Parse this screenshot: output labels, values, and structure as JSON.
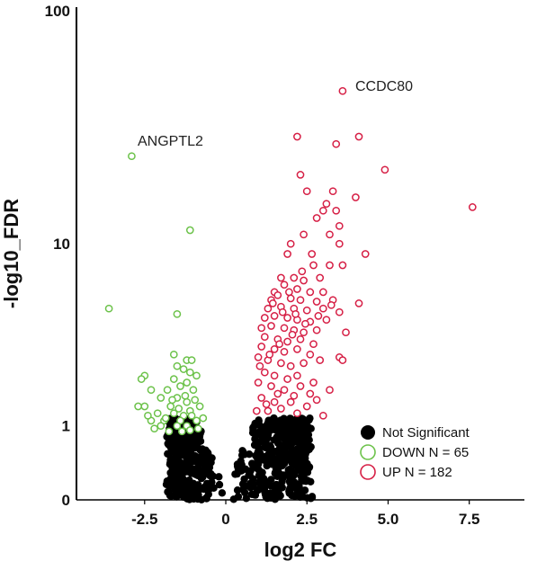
{
  "colors": {
    "not_significant": "#000000",
    "down": "#6cc24a",
    "up": "#d61f45",
    "axis": "#000000"
  },
  "chart_data": {
    "type": "scatter",
    "title": "",
    "xlabel": "log2 FC",
    "ylabel": "-log10_FDR",
    "xlim": [
      -4.6,
      9.2
    ],
    "y_scale": "log10(1 + y)",
    "ylim": [
      0,
      100
    ],
    "x_ticks": [
      {
        "value": -2.5,
        "label": "-2.5"
      },
      {
        "value": 0,
        "label": "0"
      },
      {
        "value": 2.5,
        "label": "2.5"
      },
      {
        "value": 5,
        "label": "5.0"
      },
      {
        "value": 7.5,
        "label": "7.5"
      }
    ],
    "y_ticks": [
      {
        "value": 0,
        "label": "0"
      },
      {
        "value": 1,
        "label": "1"
      },
      {
        "value": 10,
        "label": "10"
      },
      {
        "value": 100,
        "label": "100"
      }
    ],
    "grid": false,
    "legend_position": "bottom-right",
    "legend": [
      {
        "label": "Not Significant",
        "style": "filled",
        "color_key": "not_significant"
      },
      {
        "label": "DOWN N = 65",
        "style": "open",
        "color_key": "down"
      },
      {
        "label": "UP N = 182",
        "style": "open",
        "color_key": "up"
      }
    ],
    "annotations": [
      {
        "text": "CCDC80",
        "x": 3.6,
        "y": 45
      },
      {
        "text": "ANGPTL2",
        "x": -2.9,
        "y": 24
      }
    ],
    "series": [
      {
        "name": "UP N = 182",
        "style": "open",
        "color_key": "up",
        "points": [
          [
            3.6,
            45
          ],
          [
            2.2,
            29
          ],
          [
            3.4,
            27
          ],
          [
            4.1,
            29
          ],
          [
            4.9,
            21
          ],
          [
            2.3,
            20
          ],
          [
            2.5,
            17
          ],
          [
            3.3,
            17
          ],
          [
            4,
            16
          ],
          [
            3,
            14
          ],
          [
            3.1,
            15
          ],
          [
            2.8,
            13
          ],
          [
            3.4,
            14
          ],
          [
            3.5,
            12
          ],
          [
            7.6,
            14.5
          ],
          [
            2.4,
            11
          ],
          [
            3.2,
            11
          ],
          [
            2,
            10
          ],
          [
            3.5,
            10
          ],
          [
            1.9,
            9
          ],
          [
            4.3,
            9
          ],
          [
            2.7,
            8
          ],
          [
            3.2,
            8
          ],
          [
            3.6,
            8
          ],
          [
            2.1,
            7
          ],
          [
            2.9,
            7
          ],
          [
            1.7,
            7
          ],
          [
            2.4,
            6.8
          ],
          [
            1.5,
            6
          ],
          [
            1.8,
            6.5
          ],
          [
            2.2,
            6.2
          ],
          [
            2.6,
            6
          ],
          [
            3,
            6
          ],
          [
            1.4,
            5.5
          ],
          [
            1.6,
            5.8
          ],
          [
            2,
            5.6
          ],
          [
            2.3,
            5.5
          ],
          [
            2.8,
            5.4
          ],
          [
            3.3,
            5.5
          ],
          [
            4.1,
            5.3
          ],
          [
            1.3,
            5
          ],
          [
            1.7,
            5.1
          ],
          [
            2.1,
            5
          ],
          [
            2.5,
            4.9
          ],
          [
            3,
            5
          ],
          [
            3.5,
            4.8
          ],
          [
            1.2,
            4.5
          ],
          [
            1.5,
            4.6
          ],
          [
            1.9,
            4.5
          ],
          [
            2.2,
            4.4
          ],
          [
            2.6,
            4.3
          ],
          [
            3.1,
            4.4
          ],
          [
            1.1,
            4
          ],
          [
            1.4,
            4.1
          ],
          [
            1.8,
            4
          ],
          [
            2.1,
            3.9
          ],
          [
            2.4,
            3.8
          ],
          [
            2.8,
            3.9
          ],
          [
            3.7,
            3.8
          ],
          [
            1.2,
            3.6
          ],
          [
            1.6,
            3.5
          ],
          [
            1.9,
            3.4
          ],
          [
            2.3,
            3.5
          ],
          [
            2.7,
            3.3
          ],
          [
            1.1,
            3.2
          ],
          [
            1.5,
            3.1
          ],
          [
            1.8,
            3
          ],
          [
            2.2,
            3.1
          ],
          [
            2.6,
            2.9
          ],
          [
            3.5,
            2.8
          ],
          [
            3.6,
            2.7
          ],
          [
            1,
            2.8
          ],
          [
            1.3,
            2.7
          ],
          [
            1.7,
            2.6
          ],
          [
            2,
            2.5
          ],
          [
            2.4,
            2.6
          ],
          [
            2.9,
            2.7
          ],
          [
            1.2,
            2.3
          ],
          [
            1.5,
            2.2
          ],
          [
            1.9,
            2.1
          ],
          [
            2.2,
            2.2
          ],
          [
            2.7,
            2
          ],
          [
            1,
            2
          ],
          [
            1.4,
            1.9
          ],
          [
            1.8,
            1.8
          ],
          [
            2.3,
            1.9
          ],
          [
            2.6,
            1.7
          ],
          [
            3.2,
            1.8
          ],
          [
            1.1,
            1.6
          ],
          [
            1.5,
            1.5
          ],
          [
            2,
            1.5
          ],
          [
            2.5,
            1.4
          ],
          [
            1.3,
            1.3
          ],
          [
            1.7,
            1.35
          ],
          [
            2.2,
            1.25
          ],
          [
            0.95,
            1.3
          ],
          [
            1.6,
            1.7
          ],
          [
            2.1,
            1.65
          ],
          [
            2.8,
            1.55
          ],
          [
            1.25,
            1.45
          ],
          [
            3.0,
            1.2
          ],
          [
            1.05,
            2.5
          ],
          [
            1.35,
            2.9
          ],
          [
            1.65,
            3.3
          ],
          [
            2.05,
            3.7
          ],
          [
            2.45,
            4.2
          ],
          [
            2.85,
            4.6
          ],
          [
            3.25,
            5.2
          ],
          [
            1.45,
            5.3
          ],
          [
            1.95,
            6.0
          ],
          [
            2.35,
            7.5
          ],
          [
            2.65,
            9.0
          ],
          [
            1.75,
            4.8
          ],
          [
            2.15,
            4.7
          ]
        ]
      },
      {
        "name": "DOWN N = 65",
        "style": "open",
        "color_key": "down",
        "points": [
          [
            -2.9,
            24
          ],
          [
            -1.1,
            11.5
          ],
          [
            -3.6,
            5
          ],
          [
            -1.5,
            4.7
          ],
          [
            -1.6,
            2.9
          ],
          [
            -1.2,
            2.7
          ],
          [
            -1.05,
            2.7
          ],
          [
            -1.5,
            2.5
          ],
          [
            -1.3,
            2.4
          ],
          [
            -1.1,
            2.3
          ],
          [
            -2.5,
            2.2
          ],
          [
            -2.6,
            2.1
          ],
          [
            -1.6,
            2.1
          ],
          [
            -1.2,
            2
          ],
          [
            -0.9,
            2.2
          ],
          [
            -1.4,
            1.9
          ],
          [
            -2.3,
            1.8
          ],
          [
            -1.8,
            1.8
          ],
          [
            -1.0,
            1.8
          ],
          [
            -2,
            1.6
          ],
          [
            -1.5,
            1.6
          ],
          [
            -1.2,
            1.5
          ],
          [
            -2.7,
            1.4
          ],
          [
            -2.5,
            1.4
          ],
          [
            -1.7,
            1.4
          ],
          [
            -1.1,
            1.3
          ],
          [
            -0.8,
            1.4
          ],
          [
            -2.1,
            1.25
          ],
          [
            -1.6,
            1.25
          ],
          [
            -1.3,
            1.2
          ],
          [
            -2.3,
            1.1
          ],
          [
            -1.9,
            1.1
          ],
          [
            -1.4,
            1.1
          ],
          [
            -0.9,
            1.1
          ],
          [
            -0.7,
            1.15
          ],
          [
            -2.0,
            1.0
          ],
          [
            -1.5,
            1.0
          ],
          [
            -1.2,
            1.0
          ],
          [
            -0.85,
            0.95
          ],
          [
            -1.75,
            0.9
          ],
          [
            -1.35,
            0.9
          ],
          [
            -1.1,
            0.92
          ],
          [
            -2.2,
            0.95
          ],
          [
            -1.85,
            1.15
          ],
          [
            -1.65,
            1.55
          ],
          [
            -1.25,
            1.65
          ],
          [
            -0.95,
            1.55
          ],
          [
            -1.45,
            1.35
          ],
          [
            -2.4,
            1.2
          ],
          [
            -1.05,
            1.2
          ]
        ]
      },
      {
        "name": "Not Significant",
        "style": "filled",
        "color_key": "not_significant",
        "generated": true,
        "count": 900
      }
    ]
  }
}
